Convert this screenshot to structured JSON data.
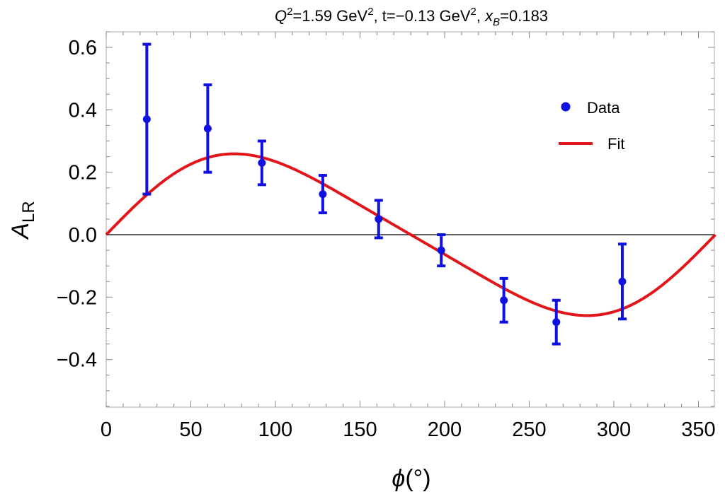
{
  "chart_data": {
    "type": "scatter",
    "title": {
      "q2_label": "Q",
      "q2_sup": "2",
      "q2_value": "=1.59 GeV",
      "q2_unit_sup": "2",
      "t_part": ", t=−0.13 GeV",
      "t_unit_sup": "2",
      "xb_label": "x",
      "xb_sub": "B",
      "xb_value": "=0.183"
    },
    "xlabel": {
      "symbol": "ϕ",
      "unit": "(°)"
    },
    "ylabel": {
      "symbol": "A",
      "sub": "LR"
    },
    "xlim": [
      0,
      360
    ],
    "ylim": [
      -0.55,
      0.65
    ],
    "xticks": [
      0,
      50,
      100,
      150,
      200,
      250,
      300,
      350
    ],
    "xtick_labels": [
      "0",
      "50",
      "100",
      "150",
      "200",
      "250",
      "300",
      "350"
    ],
    "yticks": [
      -0.4,
      -0.2,
      0.0,
      0.2,
      0.4,
      0.6
    ],
    "ytick_labels": [
      "−0.4",
      "−0.2",
      "0.0",
      "0.2",
      "0.4",
      "0.6"
    ],
    "zero_line": true,
    "grid": false,
    "legend_position": "upper-right",
    "series": [
      {
        "name": "Data",
        "kind": "points_with_errorbars",
        "color": "#1010e0",
        "x": [
          24,
          60,
          92,
          128,
          161,
          198,
          235,
          266,
          305
        ],
        "y": [
          0.37,
          0.34,
          0.23,
          0.13,
          0.05,
          -0.05,
          -0.21,
          -0.28,
          -0.15
        ],
        "y_low": [
          0.13,
          0.2,
          0.16,
          0.07,
          -0.01,
          -0.1,
          -0.28,
          -0.35,
          -0.27
        ],
        "y_high": [
          0.61,
          0.48,
          0.3,
          0.19,
          0.11,
          0.0,
          -0.14,
          -0.21,
          -0.03
        ]
      },
      {
        "name": "Fit",
        "kind": "curve",
        "color": "#e0161b",
        "function": "A sin(phi) + B sin(2 phi)",
        "A": 0.25,
        "B": 0.035
      }
    ]
  }
}
